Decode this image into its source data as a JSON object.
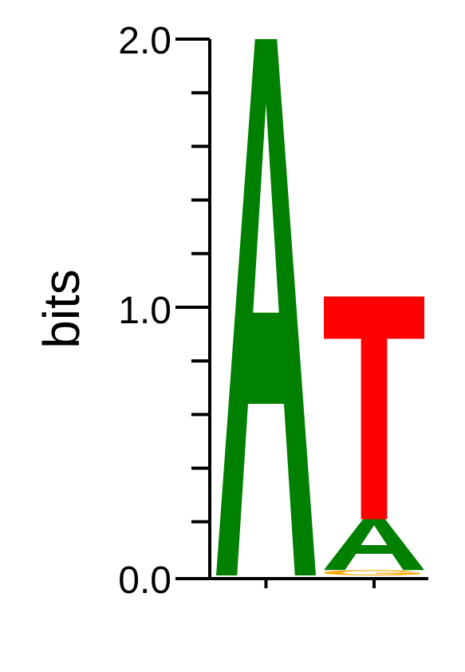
{
  "chart_data": {
    "type": "sequence-logo",
    "ylabel": "bits",
    "ylim": [
      0,
      2
    ],
    "yticks": [
      {
        "value": 0,
        "label": "0.0"
      },
      {
        "value": 1,
        "label": "1.0"
      },
      {
        "value": 2,
        "label": "2.0"
      }
    ],
    "minor_tick_step": 0.2,
    "letter_colors": {
      "A": "#008000",
      "T": "#ff0000",
      "G": "#ffa500",
      "C": "#0000ff"
    },
    "positions": [
      {
        "position": 1,
        "stack": [
          {
            "letter": "A",
            "bits": 2.0
          }
        ]
      },
      {
        "position": 2,
        "stack": [
          {
            "letter": "G",
            "bits": 0.02
          },
          {
            "letter": "A",
            "bits": 0.19
          },
          {
            "letter": "T",
            "bits": 0.83
          }
        ]
      }
    ]
  }
}
